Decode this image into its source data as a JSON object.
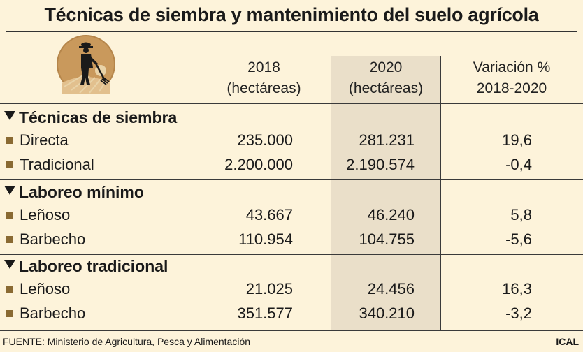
{
  "title": "Técnicas de siembra y mantenimiento del suelo agrícola",
  "colors": {
    "background": "#fdf3da",
    "shade": "#eadfc9",
    "bullet": "#8a6a32",
    "logo": "#c9995c"
  },
  "logo_icon": "farmer-with-pitchfork-icon",
  "chart_data": {
    "type": "table",
    "title": "Técnicas de siembra y mantenimiento del suelo agrícola",
    "columns": [
      {
        "line1": "2018",
        "line2": "(hectáreas)"
      },
      {
        "line1": "2020",
        "line2": "(hectáreas)"
      },
      {
        "line1": "Variación %",
        "line2": "2018-2020"
      }
    ],
    "sections": [
      {
        "title": "Técnicas de siembra",
        "rows": [
          {
            "label": "Directa",
            "v2018": "235.000",
            "v2020": "281.231",
            "variation": "19,6"
          },
          {
            "label": "Tradicional",
            "v2018": "2.200.000",
            "v2020": "2.190.574",
            "variation": "-0,4"
          }
        ]
      },
      {
        "title": "Laboreo mínimo",
        "rows": [
          {
            "label": "Leñoso",
            "v2018": "43.667",
            "v2020": "46.240",
            "variation": "5,8"
          },
          {
            "label": "Barbecho",
            "v2018": "110.954",
            "v2020": "104.755",
            "variation": "-5,6"
          }
        ]
      },
      {
        "title": "Laboreo tradicional",
        "rows": [
          {
            "label": "Leñoso",
            "v2018": "21.025",
            "v2020": "24.456",
            "variation": "16,3"
          },
          {
            "label": "Barbecho",
            "v2018": "351.577",
            "v2020": "340.210",
            "variation": "-3,2"
          }
        ]
      }
    ]
  },
  "footer": {
    "source": "FUENTE: Ministerio de Agricultura, Pesca y Alimentación",
    "credit": "ICAL"
  }
}
